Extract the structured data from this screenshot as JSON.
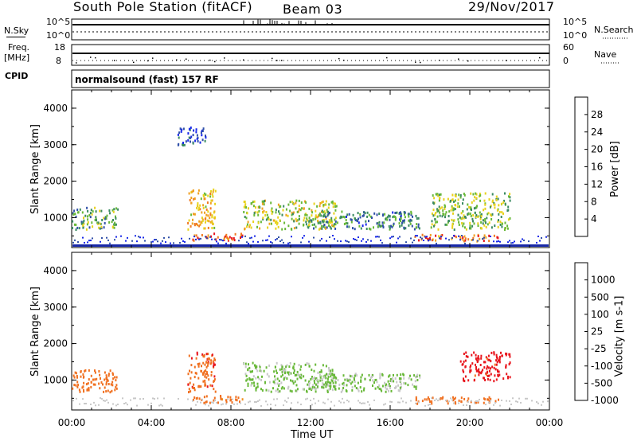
{
  "header": {
    "title": "South Pole Station (fitACF)",
    "beam": "Beam 03",
    "date": "29/Nov/2017"
  },
  "aux_panels": {
    "nsky_label": "N.Sky",
    "nsky_top": "10^5",
    "nsky_bottom": "10^0",
    "nsearch_label": "N.Search",
    "nsearch_top": "10^5",
    "nsearch_bottom": "10^0",
    "freq_label": "Freq.",
    "freq_unit": "[MHz]",
    "freq_top": "18",
    "freq_bottom": "8",
    "nave_label": "Nave",
    "nave_top": "60",
    "nave_bottom": "0",
    "cpid_label": "CPID",
    "cpid_value": "normalsound (fast) 157 RF"
  },
  "chart_data": [
    {
      "type": "heatmap",
      "name": "power",
      "ylabel": "Slant Range [km]",
      "yticks": [
        "4000",
        "3000",
        "2000",
        "1000"
      ],
      "ylim": [
        180,
        4500
      ],
      "xlim": [
        0,
        24
      ],
      "colorbar": {
        "label": "Power [dB]",
        "ticks": [
          "28",
          "24",
          "20",
          "16",
          "12",
          "8",
          "4"
        ],
        "colors": [
          "#e8141c",
          "#f07820",
          "#f0a020",
          "#e8d21c",
          "#68b838",
          "#3a8a60",
          "#3050a8",
          "#1828e8"
        ]
      },
      "echo_regions": [
        {
          "t0": 0.0,
          "t1": 2.3,
          "r0": 700,
          "r1": 1300,
          "level": 12
        },
        {
          "t0": 5.8,
          "t1": 7.2,
          "r0": 700,
          "r1": 1800,
          "level": 20
        },
        {
          "t0": 6.0,
          "t1": 8.6,
          "r0": 400,
          "r1": 600,
          "level": 26
        },
        {
          "t0": 5.3,
          "t1": 6.7,
          "r0": 3000,
          "r1": 3500,
          "level": 6
        },
        {
          "t0": 8.6,
          "t1": 13.3,
          "r0": 700,
          "r1": 1500,
          "level": 16
        },
        {
          "t0": 12.0,
          "t1": 17.5,
          "r0": 700,
          "r1": 1200,
          "level": 10
        },
        {
          "t0": 17.2,
          "t1": 21.5,
          "r0": 380,
          "r1": 560,
          "level": 24
        },
        {
          "t0": 18.0,
          "t1": 22.0,
          "r0": 700,
          "r1": 1700,
          "level": 14
        }
      ]
    },
    {
      "type": "heatmap",
      "name": "velocity",
      "ylabel": "Slant Range [km]",
      "yticks": [
        "4000",
        "3000",
        "2000",
        "1000"
      ],
      "ylim": [
        180,
        4500
      ],
      "xlim": [
        0,
        24
      ],
      "xlabel": "Time UT",
      "xticks": [
        "00:00",
        "04:00",
        "08:00",
        "12:00",
        "16:00",
        "20:00",
        "00:00"
      ],
      "colorbar": {
        "label": "Velocity [m s-1]",
        "ticks": [
          "1000",
          "500",
          "100",
          "25",
          "-25",
          "-100",
          "-500",
          "-1000"
        ],
        "colors": [
          "#2040c8",
          "#3a8a60",
          "#68b838",
          "#c8c8c8",
          "#f0c020",
          "#f09020",
          "#f07020",
          "#e8141c"
        ]
      },
      "echo_regions": [
        {
          "t0": 0.0,
          "t1": 2.3,
          "r0": 700,
          "r1": 1300,
          "level": -300
        },
        {
          "t0": 5.8,
          "t1": 7.2,
          "r0": 700,
          "r1": 1800,
          "level": -400
        },
        {
          "t0": 6.0,
          "t1": 8.6,
          "r0": 400,
          "r1": 600,
          "level": -150
        },
        {
          "t0": 8.6,
          "t1": 13.3,
          "r0": 700,
          "r1": 1500,
          "level": 120
        },
        {
          "t0": 12.0,
          "t1": 17.5,
          "r0": 700,
          "r1": 1200,
          "level": 110
        },
        {
          "t0": 17.2,
          "t1": 21.5,
          "r0": 380,
          "r1": 560,
          "level": -300
        },
        {
          "t0": 19.5,
          "t1": 22.0,
          "r0": 1000,
          "r1": 1800,
          "level": -800
        }
      ]
    }
  ]
}
